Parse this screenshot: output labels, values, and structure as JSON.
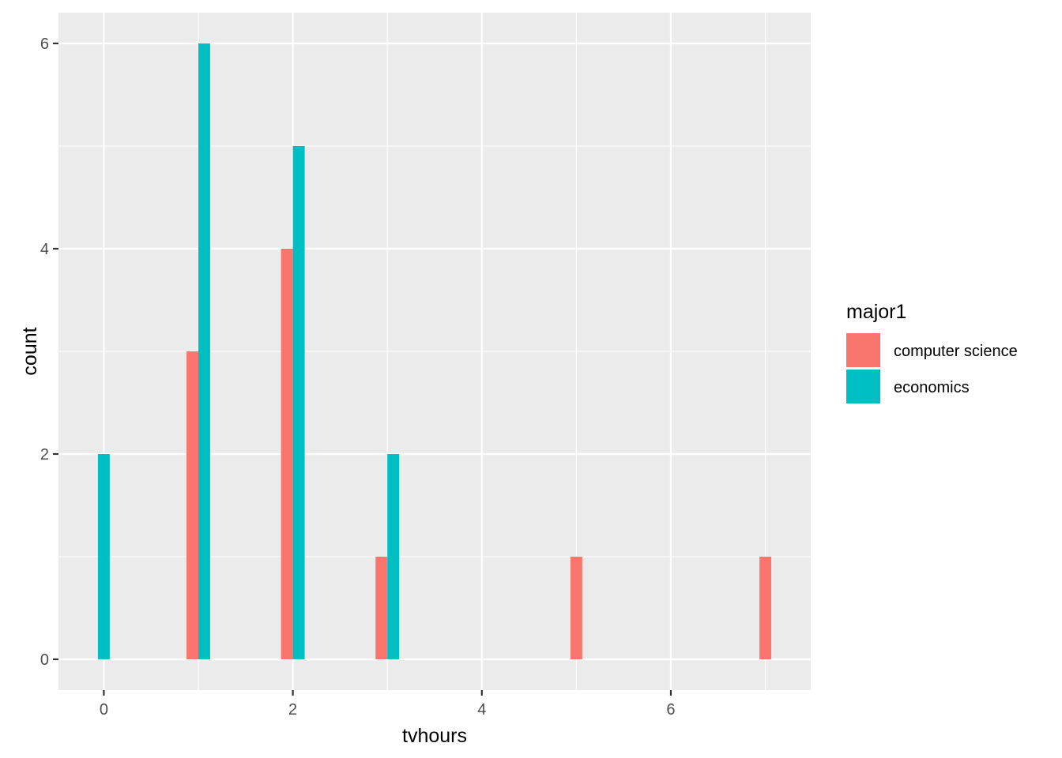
{
  "chart_data": {
    "type": "bar",
    "xlabel": "tvhours",
    "ylabel": "count",
    "xlim": [
      -0.48,
      7.48
    ],
    "ylim": [
      -0.3,
      6.3
    ],
    "x_ticks": [
      0,
      2,
      4,
      6
    ],
    "y_ticks": [
      0,
      2,
      4,
      6
    ],
    "x_tick_labels": [
      "0",
      "2",
      "4",
      "6"
    ],
    "y_tick_labels": [
      "0",
      "2",
      "4",
      "6"
    ],
    "grid": true,
    "legend_position": "right",
    "legend": {
      "title": "major1",
      "entries": [
        {
          "label": "computer science",
          "color": "#F8766D"
        },
        {
          "label": "economics",
          "color": "#00BFC4"
        }
      ]
    },
    "colors": {
      "panel_bg": "#EBEBEB",
      "grid": "#FFFFFF",
      "computer science": "#F8766D",
      "economics": "#00BFC4"
    },
    "series": [
      {
        "name": "computer science",
        "points": [
          {
            "x": 1,
            "y": 3
          },
          {
            "x": 2,
            "y": 4
          },
          {
            "x": 3,
            "y": 1
          },
          {
            "x": 5,
            "y": 1
          },
          {
            "x": 7,
            "y": 1
          }
        ]
      },
      {
        "name": "economics",
        "points": [
          {
            "x": 0,
            "y": 2
          },
          {
            "x": 1,
            "y": 6
          },
          {
            "x": 2,
            "y": 5
          },
          {
            "x": 3,
            "y": 2
          }
        ]
      }
    ]
  }
}
